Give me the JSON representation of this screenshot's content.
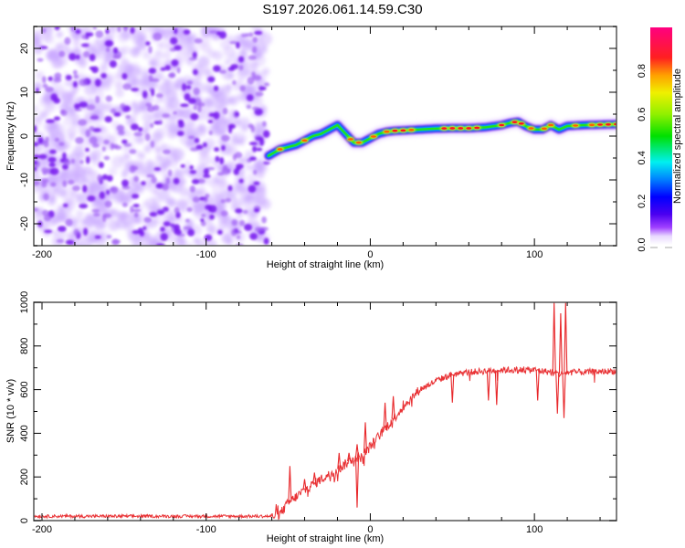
{
  "title": "S197.2026.061.14.59.C30",
  "chart_data": [
    {
      "type": "heatmap",
      "title": "S197.2026.061.14.59.C30",
      "xlabel": "Height of straight line (km)",
      "ylabel": "Frequency (Hz)",
      "xlim": [
        -205,
        150
      ],
      "ylim": [
        -25,
        25
      ],
      "xticks": [
        -200,
        -100,
        0,
        100
      ],
      "yticks": [
        -20,
        -10,
        0,
        10,
        20
      ],
      "noise_region_x": [
        -205,
        -63
      ],
      "ridge": {
        "x": [
          -62,
          -55,
          -50,
          -45,
          -40,
          -35,
          -30,
          -25,
          -20,
          -15,
          -10,
          -5,
          0,
          5,
          10,
          15,
          20,
          30,
          40,
          50,
          60,
          70,
          80,
          85,
          90,
          95,
          100,
          105,
          110,
          115,
          120,
          130,
          140,
          150
        ],
        "freq_hz": [
          -4.5,
          -3,
          -2.5,
          -2,
          -1,
          0,
          0.5,
          1.5,
          2.5,
          0.5,
          -1.5,
          -1.5,
          -0.5,
          0.5,
          1,
          1.2,
          1.3,
          1.5,
          1.7,
          1.8,
          1.8,
          2,
          2.5,
          3,
          3.3,
          2.2,
          1.5,
          1.5,
          2.5,
          1.5,
          2.3,
          2.5,
          2.6,
          2.7
        ]
      },
      "colorbar": {
        "label": "Normalized spectral amplitude",
        "range": [
          0,
          1
        ],
        "ticks": [
          "0.0",
          "0.2",
          "0.4",
          "0.6",
          "0.8"
        ]
      }
    },
    {
      "type": "line",
      "xlabel": "Height of straight line (km)",
      "ylabel": "SNR (10 * v/v)",
      "xlim": [
        -205,
        150
      ],
      "ylim": [
        0,
        1000
      ],
      "xticks": [
        -200,
        -100,
        0,
        100
      ],
      "yticks": [
        0,
        200,
        400,
        600,
        800,
        1000
      ],
      "series": [
        {
          "name": "SNR",
          "color": "#e8282b",
          "trend_x": [
            -205,
            -60,
            -55,
            -50,
            -45,
            -40,
            -30,
            -20,
            -10,
            -5,
            0,
            10,
            20,
            30,
            40,
            50,
            60,
            80,
            100,
            110,
            115,
            120,
            130,
            150
          ],
          "trend_y": [
            20,
            20,
            30,
            80,
            110,
            140,
            190,
            230,
            290,
            290,
            340,
            430,
            520,
            600,
            640,
            670,
            680,
            690,
            690,
            680,
            670,
            680,
            680,
            685
          ],
          "spikes": [
            {
              "x": -49,
              "y": 250
            },
            {
              "x": -40,
              "y": 190
            },
            {
              "x": -34,
              "y": 220
            },
            {
              "x": -19,
              "y": 310
            },
            {
              "x": -13,
              "y": 310
            },
            {
              "x": -8,
              "y": 350
            },
            {
              "x": -3,
              "y": 450
            },
            {
              "x": -8,
              "y": 60
            },
            {
              "x": 9,
              "y": 540
            },
            {
              "x": 14,
              "y": 570
            },
            {
              "x": 112,
              "y": 1000
            },
            {
              "x": 116,
              "y": 950
            },
            {
              "x": 119,
              "y": 1000
            },
            {
              "x": 114,
              "y": 490
            },
            {
              "x": 118,
              "y": 470
            },
            {
              "x": 50,
              "y": 540
            },
            {
              "x": 72,
              "y": 550
            },
            {
              "x": 77,
              "y": 530
            },
            {
              "x": 102,
              "y": 550
            }
          ]
        }
      ]
    }
  ]
}
